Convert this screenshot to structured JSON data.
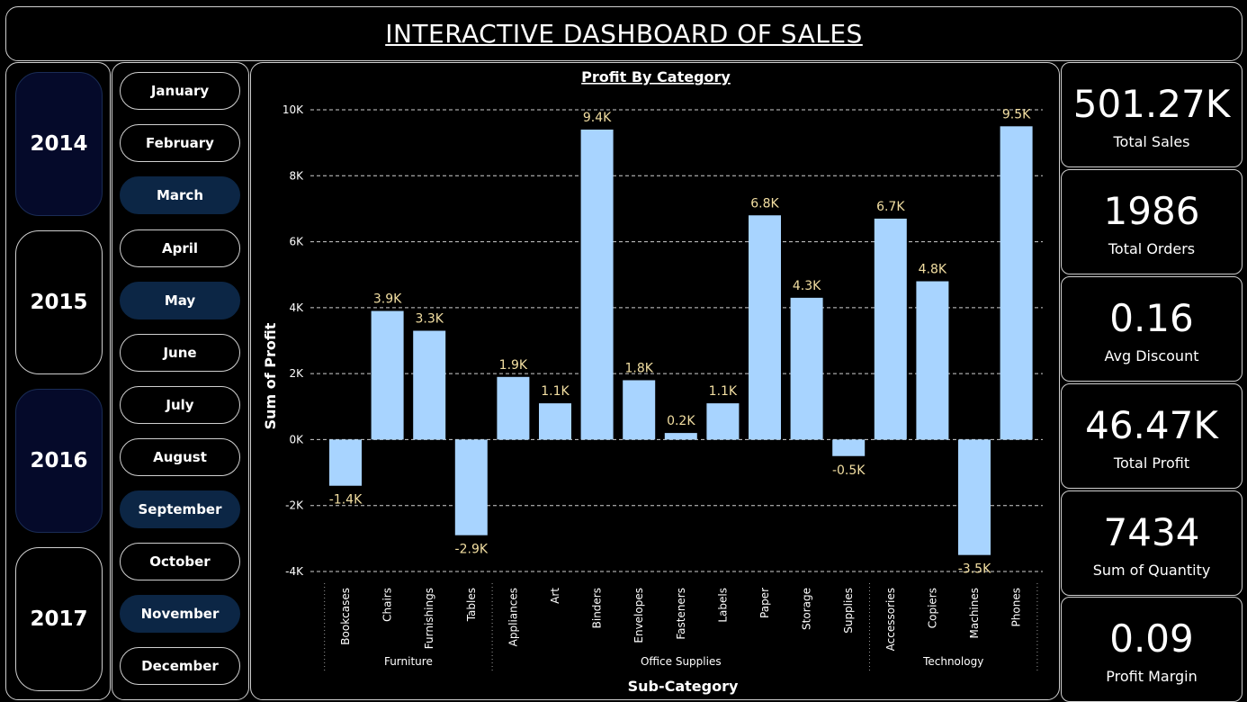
{
  "header": {
    "title": "INTERACTIVE DASHBOARD OF SALES"
  },
  "years": [
    {
      "label": "2014",
      "selected": true
    },
    {
      "label": "2015",
      "selected": false
    },
    {
      "label": "2016",
      "selected": true
    },
    {
      "label": "2017",
      "selected": false
    }
  ],
  "months": [
    {
      "label": "January",
      "selected": false
    },
    {
      "label": "February",
      "selected": false
    },
    {
      "label": "March",
      "selected": true
    },
    {
      "label": "April",
      "selected": false
    },
    {
      "label": "May",
      "selected": true
    },
    {
      "label": "June",
      "selected": false
    },
    {
      "label": "July",
      "selected": false
    },
    {
      "label": "August",
      "selected": false
    },
    {
      "label": "September",
      "selected": true
    },
    {
      "label": "October",
      "selected": false
    },
    {
      "label": "November",
      "selected": true
    },
    {
      "label": "December",
      "selected": false
    }
  ],
  "kpis": [
    {
      "value": "501.27K",
      "label": "Total Sales"
    },
    {
      "value": "1986",
      "label": "Total Orders"
    },
    {
      "value": "0.16",
      "label": "Avg Discount"
    },
    {
      "value": "46.47K",
      "label": "Total Profit"
    },
    {
      "value": "7434",
      "label": "Sum of Quantity"
    },
    {
      "value": "0.09",
      "label": "Profit Margin"
    }
  ],
  "colors": {
    "bar": "#a8d4ff",
    "data_label": "#f3dfa2",
    "selected_month": "#0c2645",
    "selected_year": "#050a2a",
    "background": "#000000"
  },
  "chart_data": {
    "type": "bar",
    "title": "Profit By Category",
    "xlabel": "Sub-Category",
    "ylabel": "Sum of Profit",
    "ylim": [
      -4000,
      10000
    ],
    "yticks": [
      -4000,
      -2000,
      0,
      2000,
      4000,
      6000,
      8000,
      10000
    ],
    "ytick_labels": [
      "-4K",
      "-2K",
      "0K",
      "2K",
      "4K",
      "6K",
      "8K",
      "10K"
    ],
    "grid": true,
    "groups": [
      {
        "name": "Furniture",
        "categories": [
          "Bookcases",
          "Chairs",
          "Furnishings",
          "Tables"
        ]
      },
      {
        "name": "Office Supplies",
        "categories": [
          "Appliances",
          "Art",
          "Binders",
          "Envelopes",
          "Fasteners",
          "Labels",
          "Paper",
          "Storage",
          "Supplies"
        ]
      },
      {
        "name": "Technology",
        "categories": [
          "Accessories",
          "Copiers",
          "Machines",
          "Phones"
        ]
      }
    ],
    "categories": [
      "Bookcases",
      "Chairs",
      "Furnishings",
      "Tables",
      "Appliances",
      "Art",
      "Binders",
      "Envelopes",
      "Fasteners",
      "Labels",
      "Paper",
      "Storage",
      "Supplies",
      "Accessories",
      "Copiers",
      "Machines",
      "Phones"
    ],
    "values": [
      -1400,
      3900,
      3300,
      -2900,
      1900,
      1100,
      9400,
      1800,
      200,
      1100,
      6800,
      4300,
      -500,
      6700,
      4800,
      -3500,
      9500
    ],
    "data_labels": [
      "-1.4K",
      "3.9K",
      "3.3K",
      "-2.9K",
      "1.9K",
      "1.1K",
      "9.4K",
      "1.8K",
      "0.2K",
      "1.1K",
      "6.8K",
      "4.3K",
      "-0.5K",
      "6.7K",
      "4.8K",
      "-3.5K",
      "9.5K"
    ]
  }
}
